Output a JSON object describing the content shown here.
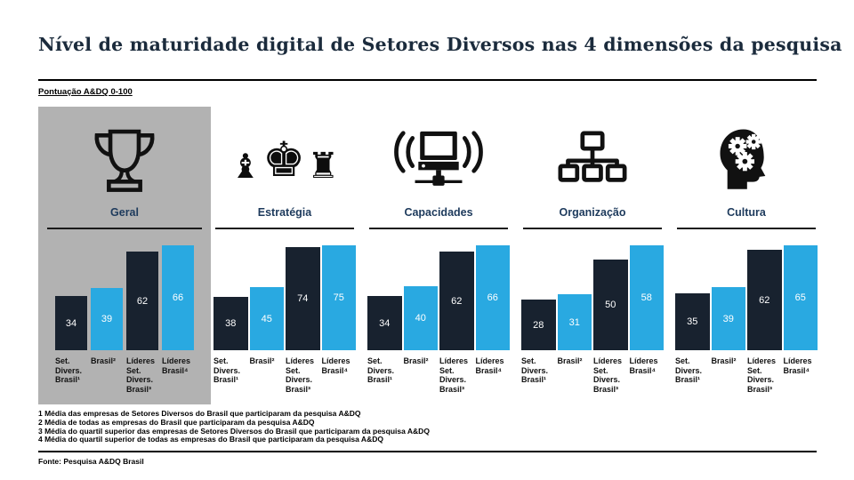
{
  "title": "Nível de maturidade digital de Setores Diversos nas 4 dimensões da pesquisa",
  "subtitle": "Pontuação A&DQ 0-100",
  "footnotes": [
    "1 Média das empresas de Setores Diversos do Brasil que participaram da pesquisa A&DQ",
    "2 Média de todas as empresas do Brasil que participaram da pesquisa A&DQ",
    "3 Média do quartil superior das empresas de Setores Diversos do Brasil que participaram da pesquisa A&DQ",
    "4 Média do quartil superior de todas as empresas do Brasil que participaram da pesquisa A&DQ"
  ],
  "source": "Fonte: Pesquisa A&DQ Brasil",
  "colors": {
    "dark_bar": "#18222f",
    "light_bar": "#29a9e1",
    "highlight_background": "#b2b2b2",
    "title_text": "#1b2b3c",
    "section_label": "#1d3a5c"
  },
  "icons": {
    "chess_glyphs": [
      "♝",
      "♚",
      "♜"
    ]
  },
  "chart_data": {
    "type": "bar",
    "categories": [
      "Set. Divers. Brasil¹",
      "Brasil²",
      "Líderes Set. Divers. Brasil³",
      "Líderes Brasil⁴"
    ],
    "category_lines": [
      [
        "Set.",
        "Divers.",
        "Brasil¹"
      ],
      [
        "Brasil²"
      ],
      [
        "Líderes",
        "Set.",
        "Divers.",
        "Brasil³"
      ],
      [
        "Líderes",
        "Brasil⁴"
      ]
    ],
    "bar_colors_by_index": [
      "dark",
      "light",
      "dark",
      "light"
    ],
    "ylim": [
      0,
      100
    ],
    "value_labels": true,
    "legend_position": "none",
    "grid": false,
    "groups": [
      {
        "name": "Geral",
        "icon": "trophy-icon",
        "highlighted": true,
        "values": [
          34,
          39,
          62,
          66
        ]
      },
      {
        "name": "Estratégia",
        "icon": "chess-pieces-icon",
        "highlighted": false,
        "values": [
          38,
          45,
          74,
          75
        ]
      },
      {
        "name": "Capacidades",
        "icon": "computer-signal-icon",
        "highlighted": false,
        "values": [
          34,
          40,
          62,
          66
        ]
      },
      {
        "name": "Organização",
        "icon": "org-chart-icon",
        "highlighted": false,
        "values": [
          28,
          31,
          50,
          58
        ]
      },
      {
        "name": "Cultura",
        "icon": "head-gears-icon",
        "highlighted": false,
        "values": [
          35,
          39,
          62,
          65
        ]
      }
    ]
  }
}
